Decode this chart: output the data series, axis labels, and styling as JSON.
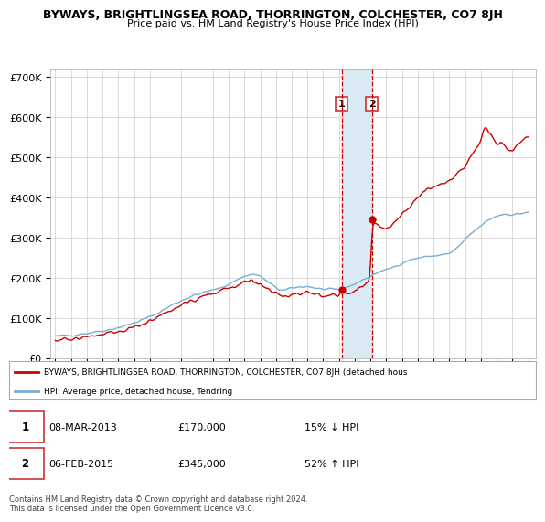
{
  "title": "BYWAYS, BRIGHTLINGSEA ROAD, THORRINGTON, COLCHESTER, CO7 8JH",
  "subtitle": "Price paid vs. HM Land Registry's House Price Index (HPI)",
  "legend_line1": "BYWAYS, BRIGHTLINGSEA ROAD, THORRINGTON, COLCHESTER, CO7 8JH (detached hous",
  "legend_line2": "HPI: Average price, detached house, Tendring",
  "footer": "Contains HM Land Registry data © Crown copyright and database right 2024.\nThis data is licensed under the Open Government Licence v3.0.",
  "sale1_date": "08-MAR-2013",
  "sale1_price": "£170,000",
  "sale1_hpi": "15% ↓ HPI",
  "sale2_date": "06-FEB-2015",
  "sale2_price": "£345,000",
  "sale2_hpi": "52% ↑ HPI",
  "red_color": "#cc0000",
  "blue_color": "#7aadd4",
  "shade_color": "#daeaf5",
  "sale1_x": 2013.17,
  "sale1_y": 170000,
  "sale2_x": 2015.08,
  "sale2_y": 345000,
  "ylim": [
    0,
    720000
  ],
  "yticks": [
    0,
    100000,
    200000,
    300000,
    400000,
    500000,
    600000,
    700000
  ],
  "ytick_labels": [
    "£0",
    "£100K",
    "£200K",
    "£300K",
    "£400K",
    "£500K",
    "£600K",
    "£700K"
  ],
  "xlim_left": 1994.7,
  "xlim_right": 2025.5
}
